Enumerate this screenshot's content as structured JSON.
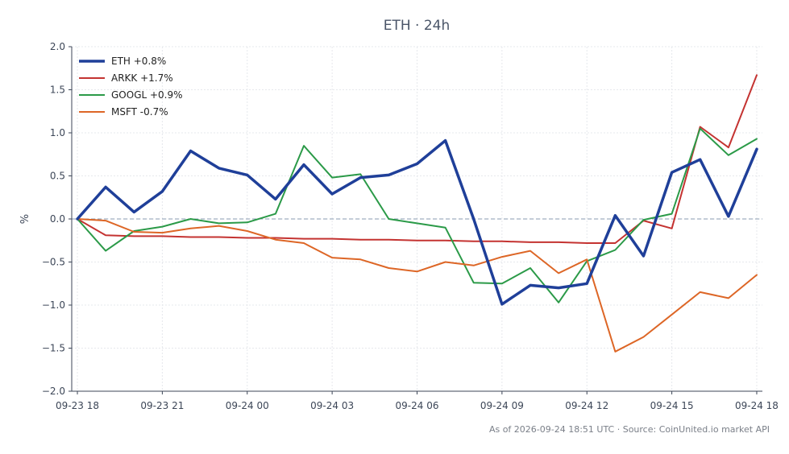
{
  "chart_data": {
    "type": "line",
    "title": "ETH · 24h",
    "ylabel": "%",
    "xlabel": "",
    "ylim": [
      -2.0,
      2.0
    ],
    "xlim": [
      -0.2,
      24.2
    ],
    "y_ticks": [
      -2.0,
      -1.5,
      -1.0,
      -0.5,
      0.0,
      0.5,
      1.0,
      1.5,
      2.0
    ],
    "y_tick_labels": [
      "−2.0",
      "−1.5",
      "−1.0",
      "−0.5",
      "0.0",
      "0.5",
      "1.0",
      "1.5",
      "2.0"
    ],
    "x_ticks": [
      0,
      3,
      6,
      9,
      12,
      15,
      18,
      21,
      24
    ],
    "x_tick_labels": [
      "09-23 18",
      "09-23 21",
      "09-24 00",
      "09-24 03",
      "09-24 06",
      "09-24 09",
      "09-24 12",
      "09-24 15",
      "09-24 18"
    ],
    "grid": true,
    "zero_line": true,
    "legend_position": "top-left",
    "x": [
      0,
      1,
      2,
      3,
      4,
      5,
      6,
      7,
      8,
      9,
      10,
      11,
      12,
      13,
      14,
      15,
      16,
      17,
      18,
      19,
      20,
      21,
      22,
      23,
      24
    ],
    "series": [
      {
        "name": "ETH +0.8%",
        "color": "#1f3f99",
        "width": 3.5,
        "values": [
          0.0,
          0.37,
          0.08,
          0.32,
          0.79,
          0.59,
          0.51,
          0.23,
          0.63,
          0.29,
          0.48,
          0.51,
          0.64,
          0.91,
          0.0,
          -0.99,
          -0.77,
          -0.8,
          -0.75,
          0.04,
          -0.43,
          0.54,
          0.69,
          0.03,
          0.81
        ]
      },
      {
        "name": "ARKK +1.7%",
        "color": "#c43331",
        "width": 2,
        "values": [
          0.0,
          -0.19,
          -0.2,
          -0.2,
          -0.21,
          -0.21,
          -0.22,
          -0.22,
          -0.23,
          -0.23,
          -0.24,
          -0.24,
          -0.25,
          -0.25,
          -0.26,
          -0.26,
          -0.27,
          -0.27,
          -0.28,
          -0.28,
          -0.02,
          -0.11,
          1.07,
          0.83,
          1.67
        ]
      },
      {
        "name": "GOOGL +0.9%",
        "color": "#2b9a48",
        "width": 2,
        "values": [
          0.0,
          -0.37,
          -0.14,
          -0.09,
          0.0,
          -0.05,
          -0.04,
          0.06,
          0.85,
          0.48,
          0.52,
          0.0,
          -0.05,
          -0.1,
          -0.74,
          -0.75,
          -0.57,
          -0.97,
          -0.49,
          -0.36,
          -0.01,
          0.06,
          1.05,
          0.74,
          0.93
        ]
      },
      {
        "name": "MSFT -0.7%",
        "color": "#dd6626",
        "width": 2,
        "values": [
          0.0,
          -0.02,
          -0.15,
          -0.16,
          -0.11,
          -0.08,
          -0.14,
          -0.24,
          -0.28,
          -0.45,
          -0.47,
          -0.57,
          -0.61,
          -0.5,
          -0.54,
          -0.44,
          -0.37,
          -0.63,
          -0.47,
          -1.54,
          -1.37,
          -1.11,
          -0.85,
          -0.92,
          -0.65
        ]
      }
    ]
  },
  "footer": "As of 2026-09-24 18:51 UTC · Source: CoinUnited.io market API"
}
